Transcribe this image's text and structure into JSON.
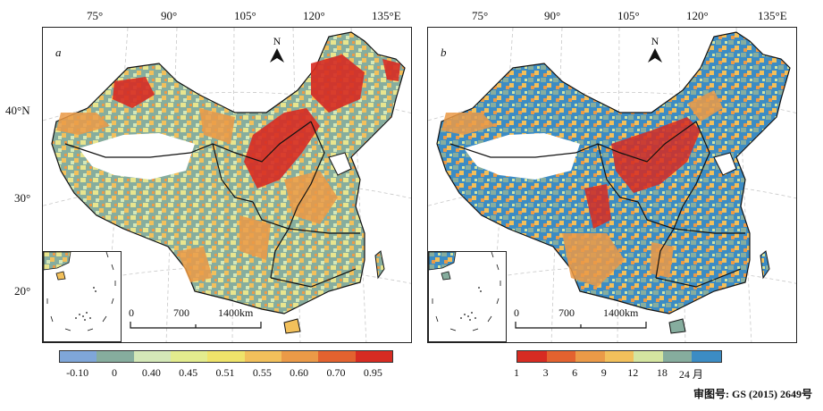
{
  "panels": [
    {
      "label": "a",
      "lon_ticks": [
        "75°",
        "90°",
        "105°",
        "120°",
        "135°E"
      ],
      "lat_ticks": [
        "40°N",
        "30°",
        "20°"
      ],
      "north": "N",
      "scale": [
        "0",
        "700",
        "1400km"
      ]
    },
    {
      "label": "b",
      "lon_ticks": [
        "75°",
        "90°",
        "105°",
        "120°",
        "135°E"
      ],
      "north": "N",
      "scale": [
        "0",
        "700",
        "1400km"
      ]
    }
  ],
  "legend_a": {
    "labels": [
      "-0.10",
      "0",
      "0.40",
      "0.45",
      "0.51",
      "0.55",
      "0.60",
      "0.70",
      "0.95"
    ],
    "colors": [
      "#7fa6d8",
      "#86ad9e",
      "#d4e8b8",
      "#e3ec8e",
      "#efe36a",
      "#f2c05b",
      "#eb9a47",
      "#e3622f",
      "#d72b22"
    ]
  },
  "legend_b": {
    "labels": [
      "1",
      "3",
      "6",
      "9",
      "12",
      "18",
      "24 月"
    ],
    "colors": [
      "#d72b22",
      "#e3622f",
      "#eb9a47",
      "#f2c05b",
      "#d4e5a0",
      "#86ad9e",
      "#3c8cc4"
    ]
  },
  "approval_number": "审图号: GS (2015) 2649号"
}
